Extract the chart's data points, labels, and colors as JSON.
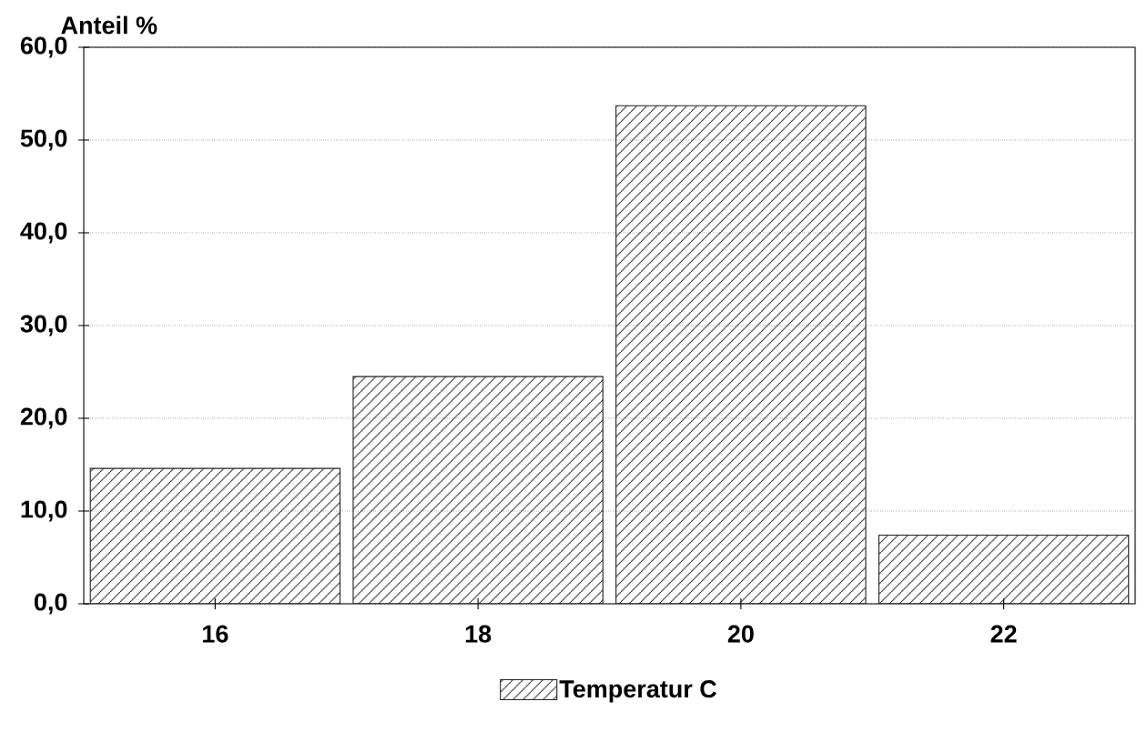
{
  "chart_data": {
    "type": "bar",
    "ylabel": "Anteil %",
    "categories": [
      "16",
      "18",
      "20",
      "22"
    ],
    "series": [
      {
        "name": "Temperatur C",
        "color": "#222222",
        "values": [
          14.6,
          24.5,
          53.7,
          7.4
        ]
      }
    ],
    "ylim": [
      0,
      60
    ],
    "yticks": [
      {
        "value": 0,
        "label": "0,0"
      },
      {
        "value": 10,
        "label": "10,0"
      },
      {
        "value": 20,
        "label": "20,0"
      },
      {
        "value": 30,
        "label": "30,0"
      },
      {
        "value": 40,
        "label": "40,0"
      },
      {
        "value": 50,
        "label": "50,0"
      },
      {
        "value": 60,
        "label": "60,0"
      }
    ],
    "grid": "y",
    "legend": "bottom"
  }
}
